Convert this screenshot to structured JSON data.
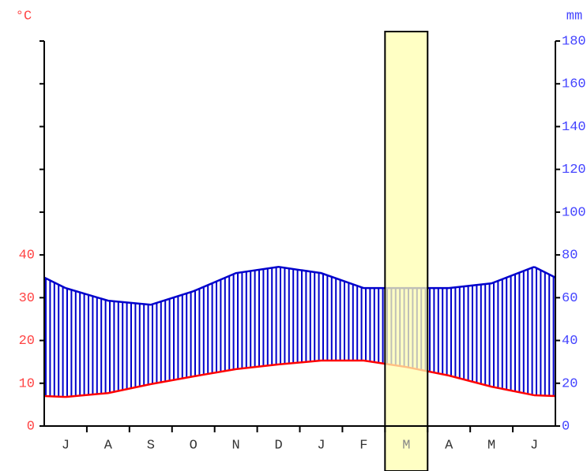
{
  "chart_data": {
    "type": "climate",
    "y_unit": "°C",
    "y2_unit": "mm",
    "categories": [
      "J",
      "A",
      "S",
      "O",
      "N",
      "D",
      "J",
      "F",
      "M",
      "A",
      "M",
      "J"
    ],
    "series": [
      {
        "name": "temperature",
        "color": "#ff0000",
        "axis": "y",
        "values": [
          6.8,
          7.7,
          9.8,
          11.6,
          13.3,
          14.4,
          15.3,
          15.3,
          13.8,
          11.8,
          9.2,
          7.2
        ]
      },
      {
        "name": "precipitation",
        "color": "#0000cc",
        "axis": "y2",
        "values": [
          64.5,
          58.6,
          56.7,
          63,
          71.5,
          74.4,
          71.5,
          64.5,
          64.5,
          64.5,
          66.7,
          74.4
        ]
      }
    ],
    "ylim": [
      0,
      90
    ],
    "yticks": [
      0,
      10,
      20,
      30,
      40
    ],
    "y_unlabeled_ticks": [
      50,
      60,
      70,
      80,
      90
    ],
    "y2lim": [
      0,
      180
    ],
    "y2ticks": [
      0,
      20,
      40,
      60,
      80,
      100,
      120,
      140,
      160,
      180
    ],
    "highlight_index": 8,
    "highlight_color": "#ffffb0",
    "y_label_color": "#ff4444",
    "y2_label_color": "#4444ff"
  }
}
